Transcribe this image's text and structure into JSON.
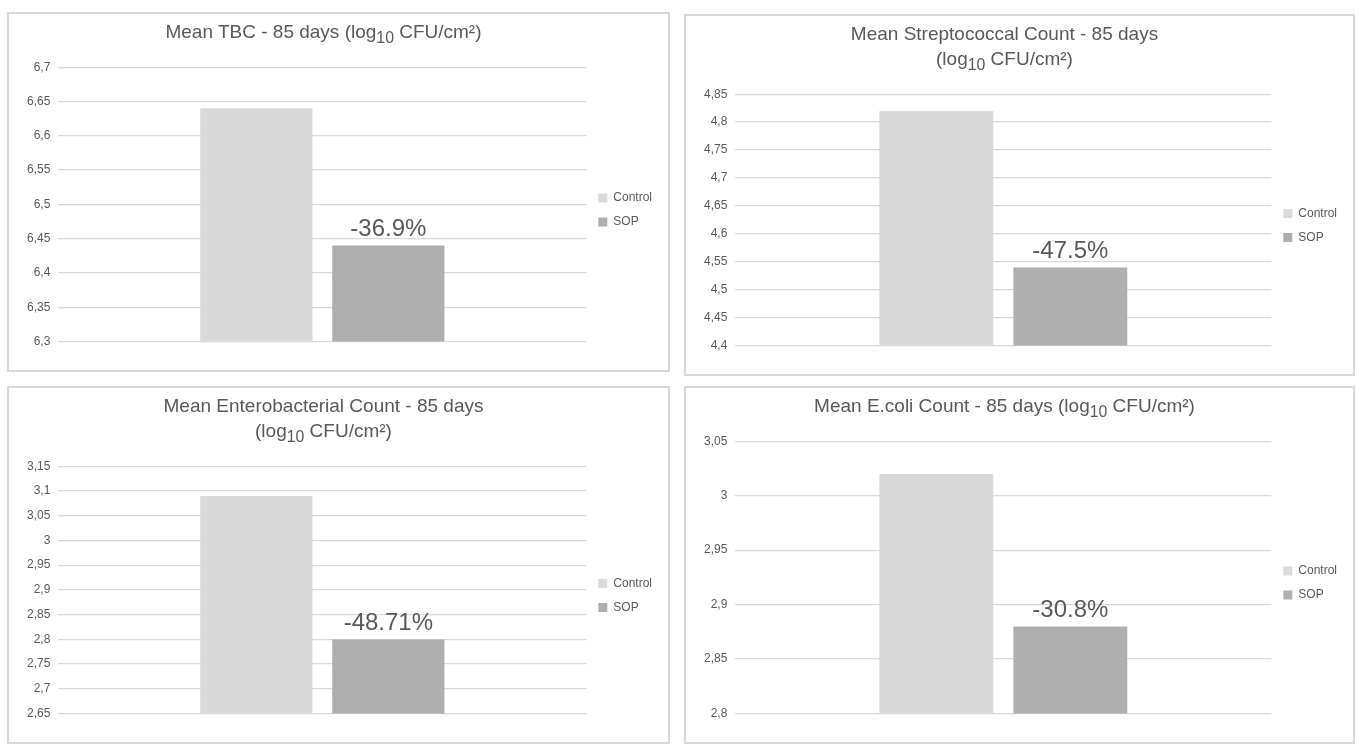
{
  "chart_data": [
    {
      "type": "bar",
      "title": "Mean TBC - 85 days (log$_{10}$ CFU/cm²)",
      "categories": [
        null
      ],
      "series": [
        {
          "name": "Control",
          "color": "#d9d9d9",
          "values": [
            6.64
          ]
        },
        {
          "name": "SOP",
          "color": "#afafaf",
          "values": [
            6.44
          ]
        }
      ],
      "annotations": [
        {
          "text": "-36.9%",
          "y": 6.44
        }
      ],
      "ylim": [
        6.3,
        6.7
      ],
      "yticks": [
        {
          "value": 6.3,
          "label": "6,3"
        },
        {
          "value": 6.35,
          "label": "6,35"
        },
        {
          "value": 6.4,
          "label": "6,4"
        },
        {
          "value": 6.45,
          "label": "6,45"
        },
        {
          "value": 6.5,
          "label": "6,5"
        },
        {
          "value": 6.55,
          "label": "6,55"
        },
        {
          "value": 6.6,
          "label": "6,6"
        },
        {
          "value": 6.65,
          "label": "6,65"
        },
        {
          "value": 6.7,
          "label": "6,7"
        }
      ],
      "grid": "y",
      "legend": "right"
    },
    {
      "type": "bar",
      "title": "Mean Streptococcal Count - 85 days\n(log$_{10}$ CFU/cm²)",
      "categories": [
        null
      ],
      "series": [
        {
          "name": "Control",
          "color": "#d9d9d9",
          "values": [
            4.82
          ]
        },
        {
          "name": "SOP",
          "color": "#afafaf",
          "values": [
            4.54
          ]
        }
      ],
      "annotations": [
        {
          "text": "-47.5%",
          "y": 4.54
        }
      ],
      "ylim": [
        4.4,
        4.85
      ],
      "yticks": [
        {
          "value": 4.4,
          "label": "4,4"
        },
        {
          "value": 4.45,
          "label": "4,45"
        },
        {
          "value": 4.5,
          "label": "4,5"
        },
        {
          "value": 4.55,
          "label": "4,55"
        },
        {
          "value": 4.6,
          "label": "4,6"
        },
        {
          "value": 4.65,
          "label": "4,65"
        },
        {
          "value": 4.7,
          "label": "4,7"
        },
        {
          "value": 4.75,
          "label": "4,75"
        },
        {
          "value": 4.8,
          "label": "4,8"
        },
        {
          "value": 4.85,
          "label": "4,85"
        }
      ],
      "grid": "y",
      "legend": "right"
    },
    {
      "type": "bar",
      "title": "Mean Enterobacterial Count - 85 days\n(log$_{10}$ CFU/cm²)",
      "categories": [
        null
      ],
      "series": [
        {
          "name": "Control",
          "color": "#d9d9d9",
          "values": [
            3.09
          ]
        },
        {
          "name": "SOP",
          "color": "#afafaf",
          "values": [
            2.8
          ]
        }
      ],
      "annotations": [
        {
          "text": "-48.71%",
          "y": 2.8
        }
      ],
      "ylim": [
        2.65,
        3.15
      ],
      "yticks": [
        {
          "value": 2.65,
          "label": "2,65"
        },
        {
          "value": 2.7,
          "label": "2,7"
        },
        {
          "value": 2.75,
          "label": "2,75"
        },
        {
          "value": 2.8,
          "label": "2,8"
        },
        {
          "value": 2.85,
          "label": "2,85"
        },
        {
          "value": 2.9,
          "label": "2,9"
        },
        {
          "value": 2.95,
          "label": "2,95"
        },
        3,
        {
          "value": 3.05,
          "label": "3,05"
        },
        {
          "value": 3.1,
          "label": "3,1"
        },
        {
          "value": 3.15,
          "label": "3,15"
        }
      ],
      "grid": "y",
      "legend": "right"
    },
    {
      "type": "bar",
      "title": "Mean E.coli Count - 85 days (log$_{10}$ CFU/cm²)",
      "categories": [
        null
      ],
      "series": [
        {
          "name": "Control",
          "color": "#d9d9d9",
          "values": [
            3.02
          ]
        },
        {
          "name": "SOP",
          "color": "#afafaf",
          "values": [
            2.88
          ]
        }
      ],
      "annotations": [
        {
          "text": "-30.8%",
          "y": 2.88
        }
      ],
      "ylim": [
        2.8,
        3.05
      ],
      "yticks": [
        {
          "value": 2.8,
          "label": "2,8"
        },
        {
          "value": 2.85,
          "label": "2,85"
        },
        {
          "value": 2.9,
          "label": "2,9"
        },
        {
          "value": 2.95,
          "label": "2,95"
        },
        3,
        {
          "value": 3.05,
          "label": "3,05"
        }
      ],
      "grid": "y",
      "legend": "right"
    }
  ]
}
